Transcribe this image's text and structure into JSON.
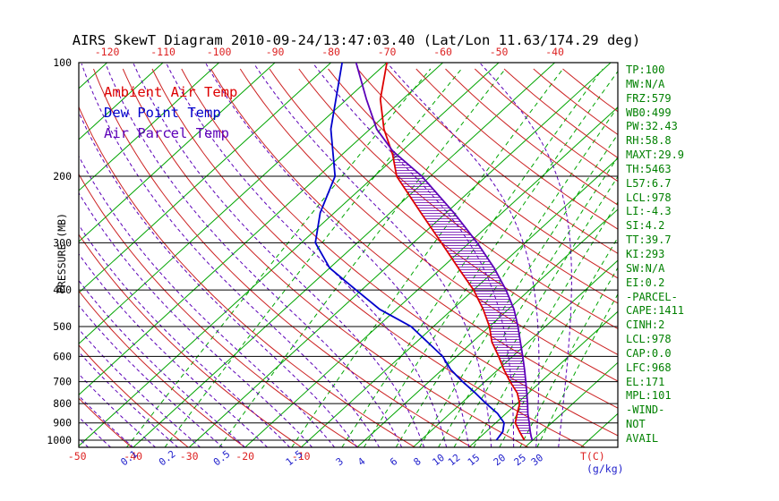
{
  "title": "AIRS SkewT Diagram 2010-09-24/13:47:03.40 (Lat/Lon 11.63/174.29 deg)",
  "legend": [
    {
      "label": "Ambient Air Temp",
      "color": "#dd0000"
    },
    {
      "label": "Dew Point Temp",
      "color": "#0000cc"
    },
    {
      "label": "Air Parcel Temp",
      "color": "#5c00b8"
    }
  ],
  "stats_panel": {
    "color": "#008000",
    "lines": [
      "TP:100",
      "MW:N/A",
      "FRZ:579",
      "WB0:499",
      "PW:32.43",
      "RH:58.8",
      "MAXT:29.9",
      "TH:5463",
      "L57:6.7",
      "LCL:978",
      "LI:-4.3",
      "SI:4.2",
      "TT:39.7",
      "KI:293",
      "SW:N/A",
      "EI:0.2",
      "-PARCEL-",
      "CAPE:1411",
      "CINH:2",
      "LCL:978",
      "CAP:0.0",
      "LFC:968",
      "EL:171",
      "MPL:101",
      "-WIND-",
      "NOT",
      "AVAIL"
    ]
  },
  "axes": {
    "pressure_label": "PRESSURE (MB)",
    "pressure_ticks": [
      100,
      200,
      300,
      400,
      500,
      600,
      700,
      800,
      900,
      1000
    ],
    "top_temp_ticks": [
      -120,
      -110,
      -100,
      -90,
      -80,
      -70,
      -60,
      -50,
      -40
    ],
    "bottom_temp_ticks": [
      -50,
      -40,
      -30,
      -20,
      -10
    ],
    "temp_unit_label": "T(C)",
    "mixing_unit_label": "(g/kg)",
    "mixing_ratio_ticks": [
      0.1,
      0.2,
      0.5,
      1.5,
      3,
      4,
      6,
      8,
      10,
      12,
      15,
      20,
      25,
      30
    ]
  },
  "colors": {
    "isotherm": "#00a400",
    "dry_adiabat": "#cc2222",
    "moist_adiabat": "#5c00b8",
    "mixing_ratio": "#00a400",
    "pressure_line": "#000000",
    "tick_red": "#dd2222",
    "tick_blue": "#2222cc",
    "hatch": "#6a00b0"
  },
  "chart_data": {
    "type": "line",
    "diagram": "skew-t-log-p",
    "pressure_axis_mb": [
      100,
      1045
    ],
    "temp_axis_at_100mb_C": [
      -120,
      -40
    ],
    "isotherms_C": {
      "min": -120,
      "max": 50,
      "step": 10
    },
    "dry_adiabats_K": {
      "min": 220,
      "max": 450,
      "step": 10
    },
    "moist_adiabat_start_C": {
      "min": -60,
      "max": 36,
      "step": 4
    },
    "mixing_ratio_lines_gkg": [
      0.1,
      0.2,
      0.5,
      1.5,
      3,
      4,
      6,
      8,
      10,
      12,
      15,
      20,
      25,
      30
    ],
    "cape_region": {
      "from_mb": 968,
      "to_mb": 172
    },
    "series": [
      {
        "name": "Ambient Air Temp",
        "color": "#dd0000",
        "points_p_T": [
          [
            1000,
            28.5
          ],
          [
            950,
            26
          ],
          [
            900,
            23.5
          ],
          [
            850,
            22
          ],
          [
            800,
            20.5
          ],
          [
            750,
            18
          ],
          [
            700,
            14.5
          ],
          [
            650,
            11
          ],
          [
            600,
            7.5
          ],
          [
            550,
            3.5
          ],
          [
            500,
            0
          ],
          [
            450,
            -4.5
          ],
          [
            400,
            -10
          ],
          [
            350,
            -17
          ],
          [
            300,
            -25
          ],
          [
            250,
            -34.5
          ],
          [
            200,
            -46
          ],
          [
            175,
            -51
          ],
          [
            150,
            -57.5
          ],
          [
            125,
            -64
          ],
          [
            100,
            -70
          ]
        ]
      },
      {
        "name": "Dew Point Temp",
        "color": "#0000cc",
        "points_p_T": [
          [
            1000,
            23.5
          ],
          [
            950,
            23
          ],
          [
            900,
            21.5
          ],
          [
            850,
            18.5
          ],
          [
            800,
            14.5
          ],
          [
            750,
            10.5
          ],
          [
            700,
            6
          ],
          [
            650,
            1.5
          ],
          [
            600,
            -2.5
          ],
          [
            550,
            -8
          ],
          [
            500,
            -14
          ],
          [
            450,
            -23
          ],
          [
            400,
            -31
          ],
          [
            350,
            -40
          ],
          [
            300,
            -47.5
          ],
          [
            250,
            -52.5
          ],
          [
            200,
            -57
          ],
          [
            150,
            -67
          ],
          [
            100,
            -78
          ]
        ]
      },
      {
        "name": "Air Parcel Temp",
        "color": "#5c00b8",
        "points_p_T": [
          [
            1000,
            29.9
          ],
          [
            978,
            29
          ],
          [
            950,
            27.9
          ],
          [
            900,
            26
          ],
          [
            850,
            23.9
          ],
          [
            800,
            21.9
          ],
          [
            750,
            19.7
          ],
          [
            700,
            17.3
          ],
          [
            650,
            14.7
          ],
          [
            600,
            11.8
          ],
          [
            550,
            8.6
          ],
          [
            500,
            5.1
          ],
          [
            450,
            1
          ],
          [
            400,
            -4.2
          ],
          [
            350,
            -10.6
          ],
          [
            300,
            -18.6
          ],
          [
            250,
            -28.6
          ],
          [
            200,
            -41.5
          ],
          [
            175,
            -50.3
          ],
          [
            171,
            -51.8
          ],
          [
            150,
            -58.8
          ],
          [
            125,
            -66.5
          ],
          [
            100,
            -75.5
          ]
        ]
      }
    ]
  }
}
